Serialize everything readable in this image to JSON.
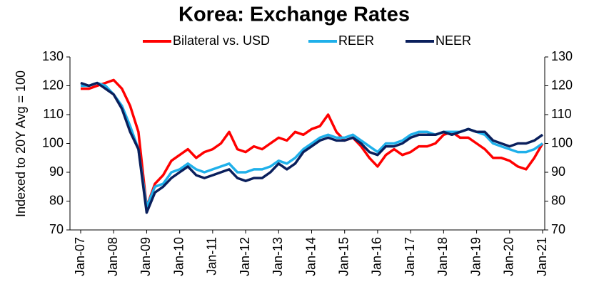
{
  "chart_data": {
    "type": "line",
    "title": "Korea: Exchange Rates",
    "y_label": "Indexed to 20Y Avg = 100",
    "categories": [
      "Jan-07",
      null,
      null,
      null,
      "Jan-08",
      null,
      null,
      null,
      "Jan-09",
      null,
      null,
      null,
      "Jan-10",
      null,
      null,
      null,
      "Jan-11",
      null,
      null,
      null,
      "Jan-12",
      null,
      null,
      null,
      "Jan-13",
      null,
      null,
      null,
      "Jan-14",
      null,
      null,
      null,
      "Jan-15",
      null,
      null,
      null,
      "Jan-16",
      null,
      null,
      null,
      "Jan-17",
      null,
      null,
      null,
      "Jan-18",
      null,
      null,
      null,
      "Jan-19",
      null,
      null,
      null,
      "Jan-20",
      null,
      null,
      null,
      "Jan-21"
    ],
    "series": [
      {
        "name": "Bilateral vs. USD",
        "color": "#ff0000",
        "values": [
          119,
          119,
          120,
          121,
          122,
          119,
          113,
          104,
          78,
          86,
          89,
          94,
          96,
          98,
          95,
          97,
          98,
          100,
          104,
          98,
          97,
          99,
          98,
          100,
          102,
          101,
          104,
          103,
          105,
          106,
          110,
          104,
          101,
          102,
          99,
          95,
          92,
          96,
          98,
          96,
          97,
          99,
          99,
          100,
          103,
          104,
          102,
          102,
          100,
          98,
          95,
          95,
          94,
          92,
          91,
          95,
          100
        ]
      },
      {
        "name": "REER",
        "color": "#1fb0ea",
        "values": [
          120,
          120,
          121,
          120,
          117,
          113,
          106,
          98,
          78,
          85,
          86,
          90,
          91,
          93,
          91,
          90,
          91,
          92,
          93,
          90,
          90,
          91,
          91,
          92,
          94,
          93,
          95,
          98,
          100,
          102,
          103,
          102,
          102,
          103,
          101,
          99,
          97,
          100,
          100,
          101,
          103,
          104,
          104,
          103,
          104,
          104,
          104,
          105,
          104,
          103,
          100,
          99,
          98,
          97,
          97,
          98,
          100
        ]
      },
      {
        "name": "NEER",
        "color": "#0a1f5c",
        "values": [
          121,
          120,
          121,
          119,
          117,
          112,
          104,
          98,
          76,
          83,
          85,
          88,
          90,
          92,
          89,
          88,
          89,
          90,
          91,
          88,
          87,
          88,
          88,
          90,
          93,
          91,
          93,
          97,
          99,
          101,
          102,
          101,
          101,
          102,
          100,
          97,
          96,
          99,
          99,
          100,
          102,
          103,
          103,
          103,
          104,
          103,
          104,
          105,
          104,
          104,
          101,
          100,
          99,
          100,
          100,
          101,
          103
        ]
      }
    ],
    "ylim": [
      70,
      130
    ],
    "yticks": [
      70,
      80,
      90,
      100,
      110,
      120,
      130
    ],
    "y2lim": [
      70,
      130
    ],
    "y2ticks": [
      70,
      80,
      90,
      100,
      110,
      120,
      130
    ],
    "legend": "top"
  }
}
